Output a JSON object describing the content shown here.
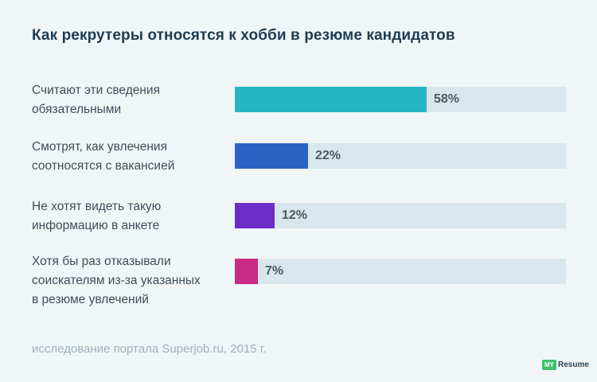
{
  "source": "исследование портала Superjob.ru, 2015 г.",
  "logo": {
    "my": "MY",
    "resume": "Resume"
  },
  "chart_data": {
    "type": "bar",
    "orientation": "horizontal",
    "title": "Как рекрутеры относятся к хобби в резюме кандидатов",
    "value_suffix": "%",
    "xlim": [
      0,
      100
    ],
    "grid": false,
    "items": [
      {
        "label_lines": [
          "Считают эти сведения",
          "обязательными"
        ],
        "value": 58,
        "value_label": "58%",
        "color": "#26b7c3"
      },
      {
        "label_lines": [
          "Смотрят, как увлечения",
          "соотносятся с вакансией"
        ],
        "value": 22,
        "value_label": "22%",
        "color": "#2b63c4"
      },
      {
        "label_lines": [
          "Не хотят видеть такую",
          "информацию в анкете"
        ],
        "value": 12,
        "value_label": "12%",
        "color": "#6b2ec7"
      },
      {
        "label_lines": [
          "Хотя бы раз отказывали",
          "соискателям из-за указанных",
          "в резюме увлечений"
        ],
        "value": 7,
        "value_label": "7%",
        "color": "#c92a86"
      }
    ]
  }
}
